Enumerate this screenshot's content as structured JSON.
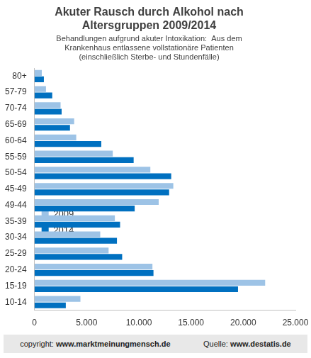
{
  "chart_data": {
    "type": "bar",
    "orientation": "horizontal",
    "title": [
      "Akuter Rausch durch Alkohol nach",
      "Altersgruppen 2009/2014"
    ],
    "subtitle": [
      "Behandlungen aufgrund akuter Intoxikation:  Aus dem",
      "Krankenhaus entlassene vollstationäre Patienten",
      "(einschließlich Sterbe- und Stundenfälle)"
    ],
    "annotations": [
      "copyright: www.marktmeinungmensch.de",
      "Quelle: www.destatis.de"
    ],
    "categories": [
      "80+",
      "57-79",
      "70-74",
      "65-69",
      "60-64",
      "55-59",
      "50-54",
      "45-49",
      "49-44",
      "35-39",
      "30-34",
      "25-29",
      "20-24",
      "15-19",
      "10-14"
    ],
    "series": [
      {
        "name": "2009",
        "color": "#9dc3e6",
        "values": [
          700,
          1100,
          2500,
          3800,
          4000,
          7500,
          11100,
          13300,
          11900,
          7700,
          6300,
          7100,
          11300,
          22100,
          4400
        ]
      },
      {
        "name": "2014",
        "color": "#0070c0",
        "values": [
          900,
          1700,
          2600,
          3400,
          6400,
          9500,
          13100,
          12900,
          9600,
          8200,
          7900,
          8400,
          11400,
          19500,
          3000
        ]
      }
    ],
    "xlim": [
      0,
      25000
    ],
    "xticks": [
      0,
      {
        "value": 5000,
        "label": "5.000"
      },
      {
        "value": 10000,
        "label": "10.000"
      },
      {
        "value": 15000,
        "label": "15.000"
      },
      {
        "value": 20000,
        "label": "20.000"
      },
      {
        "value": 25000,
        "label": "25.000"
      }
    ],
    "grid": false,
    "legend": "upper right"
  }
}
